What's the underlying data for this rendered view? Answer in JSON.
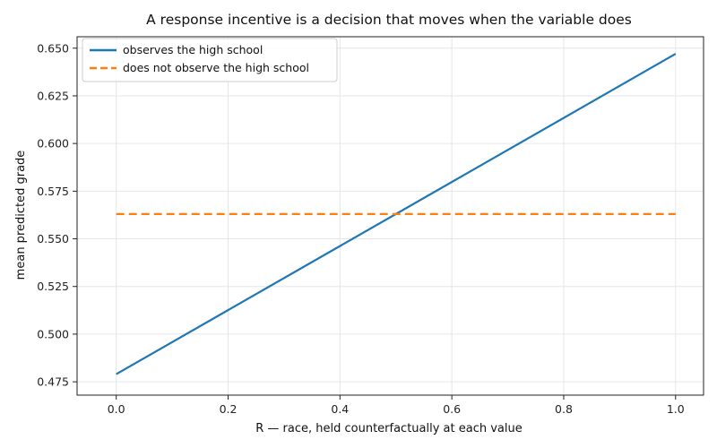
{
  "chart_data": {
    "type": "line",
    "title": "A response incentive is a decision that moves when the variable does",
    "xlabel": "R — race, held counterfactually at each value",
    "ylabel": "mean predicted grade",
    "xlim": [
      -0.07,
      1.05
    ],
    "ylim": [
      0.468,
      0.656
    ],
    "x_ticks": [
      0.0,
      0.2,
      0.4,
      0.6,
      0.8,
      1.0
    ],
    "x_tick_labels": [
      "0.0",
      "0.2",
      "0.4",
      "0.6",
      "0.8",
      "1.0"
    ],
    "y_ticks": [
      0.475,
      0.5,
      0.525,
      0.55,
      0.575,
      0.6,
      0.625,
      0.65
    ],
    "y_tick_labels": [
      "0.475",
      "0.500",
      "0.525",
      "0.550",
      "0.575",
      "0.600",
      "0.625",
      "0.650"
    ],
    "grid": true,
    "legend_position": "top-left",
    "series": [
      {
        "name": "observes the high school",
        "color": "#1f77b4",
        "style": "solid",
        "x": [
          0.0,
          1.0
        ],
        "y": [
          0.479,
          0.647
        ]
      },
      {
        "name": "does not observe the high school",
        "color": "#ff7f0e",
        "style": "dashed",
        "x": [
          0.0,
          1.0
        ],
        "y": [
          0.563,
          0.563
        ]
      }
    ]
  }
}
